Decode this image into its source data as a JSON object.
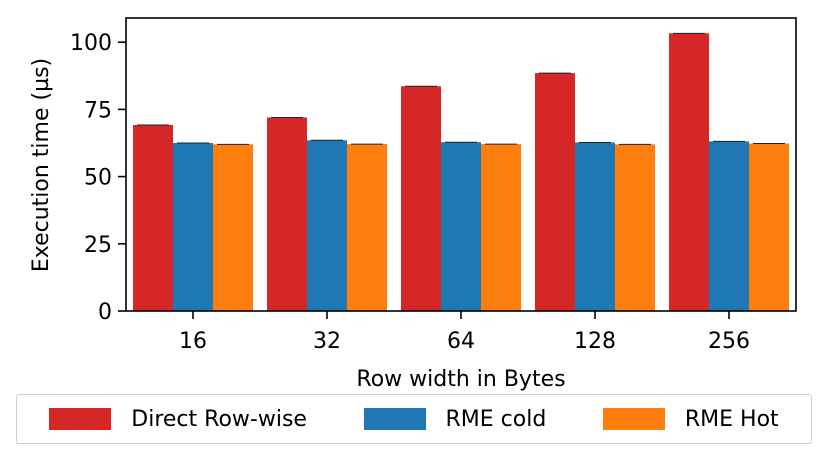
{
  "chart_data": {
    "type": "bar",
    "xlabel": "Row width in Bytes",
    "ylabel": "Execution time (µs)",
    "categories": [
      "16",
      "32",
      "64",
      "128",
      "256"
    ],
    "ylim": [
      0,
      109
    ],
    "yticks": [
      0,
      25,
      50,
      75,
      100
    ],
    "grid": false,
    "legend_position": "bottom, outside plot",
    "series": [
      {
        "name": "Direct Row-wise",
        "color": "#d62728",
        "values": [
          69.2,
          72.0,
          83.6,
          88.5,
          103.3
        ]
      },
      {
        "name": "RME cold",
        "color": "#1f77b4",
        "values": [
          62.5,
          63.5,
          62.8,
          62.7,
          63.1
        ]
      },
      {
        "name": "RME Hot",
        "color": "#ff7f0e",
        "values": [
          62.0,
          62.1,
          62.1,
          62.0,
          62.3
        ]
      }
    ]
  }
}
